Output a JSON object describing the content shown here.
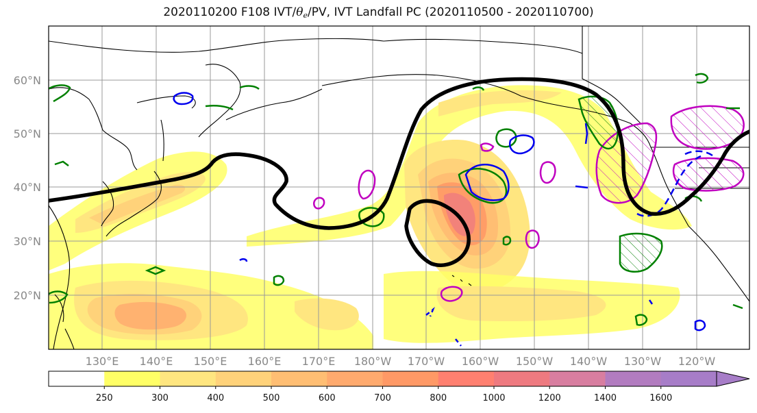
{
  "title": {
    "prefix": "2020110200 F108 IVT/",
    "theta": "θ",
    "theta_sub": "e",
    "suffix": "/PV, IVT Landfall PC (2020110500 - 2020110700)"
  },
  "map": {
    "lat_labels": [
      "20°N",
      "30°N",
      "40°N",
      "50°N",
      "60°N"
    ],
    "lon_labels": [
      "130°E",
      "140°E",
      "150°E",
      "160°E",
      "170°E",
      "180°W",
      "170°W",
      "160°W",
      "150°W",
      "140°W",
      "130°W",
      "120°W"
    ],
    "colors": {
      "pv_contour": "#000000",
      "theta_e_pos": "#008000",
      "theta_e_neg": "#0000ee",
      "landfall_pc": "#c000c0",
      "coastline": "#000000",
      "grid": "#999999"
    }
  },
  "colorbar": {
    "levels": [
      "250",
      "300",
      "400",
      "500",
      "600",
      "700",
      "800",
      "1000",
      "1200",
      "1400",
      "1600"
    ],
    "colors": [
      "#ffffff",
      "#ffff66",
      "#ffe680",
      "#ffd27a",
      "#ffbe73",
      "#ffaa6e",
      "#ff9966",
      "#ff8070",
      "#ee7a80",
      "#d87ea0",
      "#b27cc0",
      "#a77dc8"
    ]
  }
}
